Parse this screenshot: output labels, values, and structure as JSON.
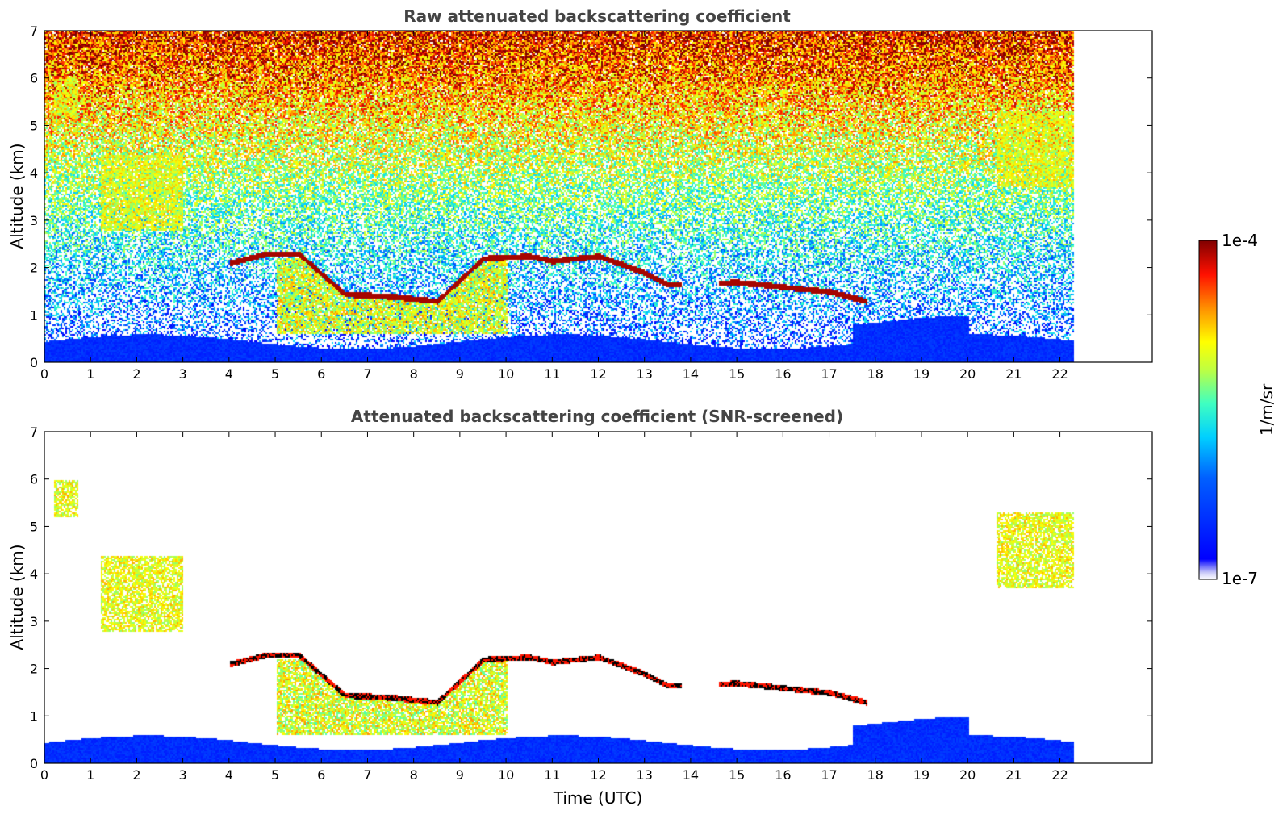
{
  "chart_data": [
    {
      "type": "heatmap",
      "title": "Raw attenuated backscattering coefficient",
      "xlabel": "",
      "ylabel": "Altitude (km)",
      "xlim": [
        0,
        24
      ],
      "ylim": [
        0,
        7
      ],
      "xticks": [
        0,
        1,
        2,
        3,
        4,
        5,
        6,
        7,
        8,
        9,
        10,
        11,
        12,
        13,
        14,
        15,
        16,
        17,
        18,
        19,
        20,
        21,
        22
      ],
      "yticks": [
        0,
        1,
        2,
        3,
        4,
        5,
        6,
        7
      ],
      "data_end_time": 22.3,
      "screened": false,
      "features": {
        "aerosol_layer_top_km": 0.45,
        "noisy_background_above_km": 2.0,
        "cloud_layer": [
          {
            "t": 4.0,
            "h": 2.1
          },
          {
            "t": 4.8,
            "h": 2.3
          },
          {
            "t": 5.5,
            "h": 2.3
          },
          {
            "t": 6.5,
            "h": 1.45
          },
          {
            "t": 7.5,
            "h": 1.4
          },
          {
            "t": 8.5,
            "h": 1.3
          },
          {
            "t": 9.5,
            "h": 2.2
          },
          {
            "t": 10.5,
            "h": 2.25
          },
          {
            "t": 11.0,
            "h": 2.15
          },
          {
            "t": 12.0,
            "h": 2.25
          },
          {
            "t": 13.0,
            "h": 1.9
          },
          {
            "t": 13.5,
            "h": 1.65
          },
          {
            "t": 15.0,
            "h": 1.7
          },
          {
            "t": 16.0,
            "h": 1.6
          },
          {
            "t": 17.0,
            "h": 1.5
          },
          {
            "t": 17.8,
            "h": 1.3
          }
        ],
        "cirrus_patches": [
          {
            "t0": 1.2,
            "t1": 3.0,
            "h0": 2.8,
            "h1": 4.4
          },
          {
            "t0": 0.2,
            "t1": 0.7,
            "h0": 5.2,
            "h1": 6.0
          },
          {
            "t0": 20.6,
            "t1": 22.3,
            "h0": 3.7,
            "h1": 5.3
          }
        ],
        "boundary_layer_plumes": [
          {
            "t0": 5.0,
            "t1": 10.0,
            "h0": 0.6,
            "h1": 2.2
          }
        ]
      }
    },
    {
      "type": "heatmap",
      "title": "Attenuated backscattering coefficient (SNR-screened)",
      "xlabel": "Time (UTC)",
      "ylabel": "Altitude (km)",
      "xlim": [
        0,
        24
      ],
      "ylim": [
        0,
        7
      ],
      "xticks": [
        0,
        1,
        2,
        3,
        4,
        5,
        6,
        7,
        8,
        9,
        10,
        11,
        12,
        13,
        14,
        15,
        16,
        17,
        18,
        19,
        20,
        21,
        22
      ],
      "yticks": [
        0,
        1,
        2,
        3,
        4,
        5,
        6,
        7
      ],
      "data_end_time": 22.3,
      "screened": true
    }
  ],
  "colorbar": {
    "label": "1/m/sr",
    "max_label": "1e-4",
    "min_label": "1e-7",
    "colormap": "jet",
    "colors": [
      "#e8e8f8",
      "#0000ff",
      "#00a0ff",
      "#00ffff",
      "#80ff80",
      "#ffff00",
      "#ff8000",
      "#ff0000",
      "#800000"
    ]
  }
}
